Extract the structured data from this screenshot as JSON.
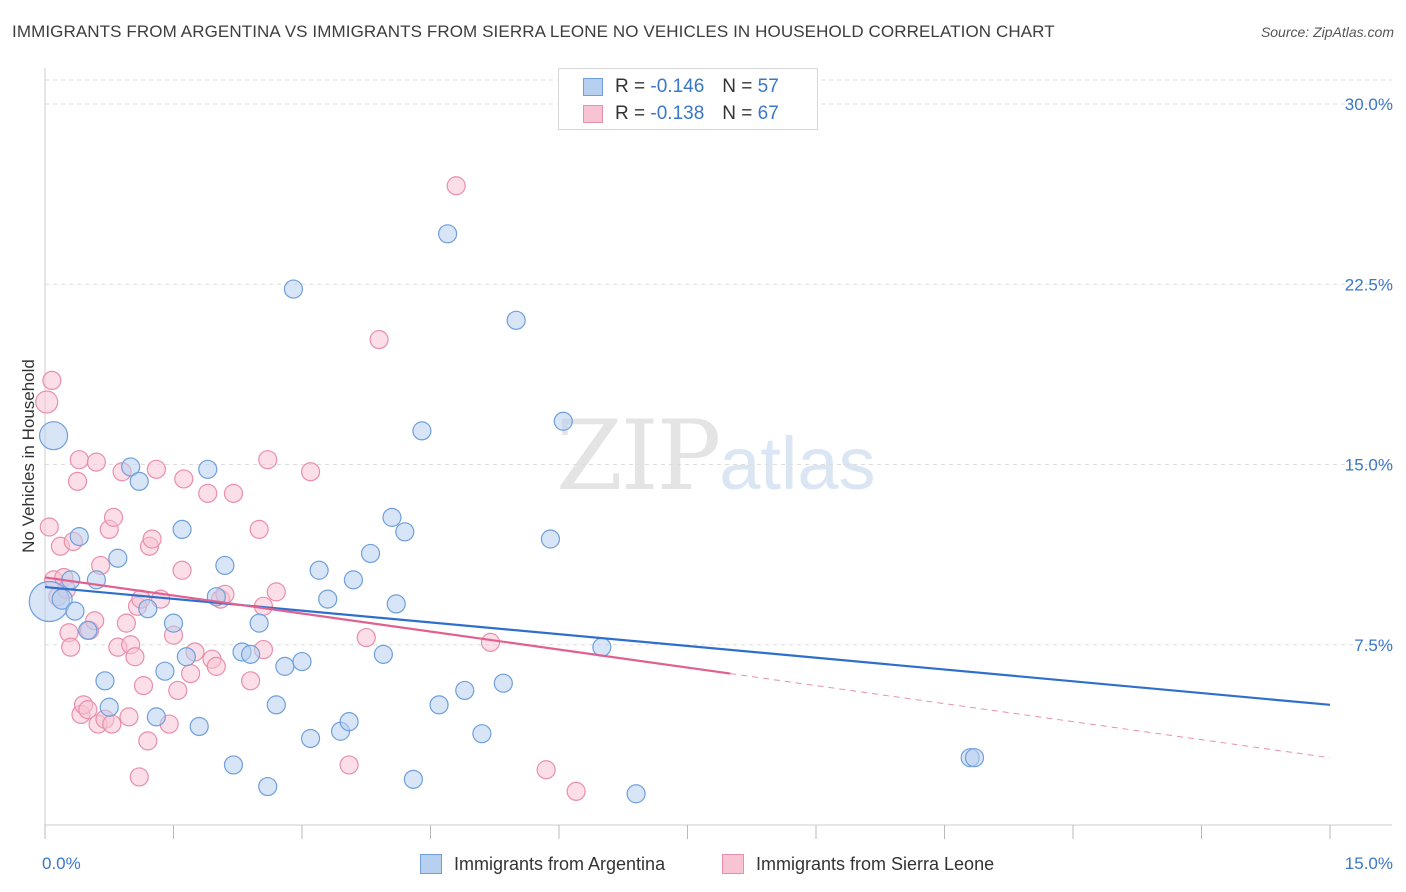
{
  "title": "IMMIGRANTS FROM ARGENTINA VS IMMIGRANTS FROM SIERRA LEONE NO VEHICLES IN HOUSEHOLD CORRELATION CHART",
  "source": "Source: ZipAtlas.com",
  "watermark": {
    "zip": "ZIP",
    "atlas": "atlas"
  },
  "legend": {
    "rows": [
      {
        "r_label": "R = ",
        "r_value": "-0.146",
        "n_label": "N = ",
        "n_value": "57"
      },
      {
        "r_label": "R = ",
        "r_value": "-0.138",
        "n_label": "N = ",
        "n_value": "67"
      }
    ]
  },
  "colors": {
    "argentina_fill": "#b7d0f0",
    "argentina_stroke": "#6f9fdc",
    "argentina_line": "#2f6fcc",
    "sierra_fill": "#f8c3d3",
    "sierra_stroke": "#e98fab",
    "sierra_line": "#e06090",
    "tick_label": "#3a77c8",
    "grid": "#dddddd"
  },
  "chart_data": {
    "type": "scatter",
    "title": "IMMIGRANTS FROM ARGENTINA VS IMMIGRANTS FROM SIERRA LEONE NO VEHICLES IN HOUSEHOLD CORRELATION CHART",
    "xlabel": "",
    "ylabel": "No Vehicles in Household",
    "xlim": [
      0,
      15
    ],
    "ylim": [
      0,
      31
    ],
    "x_tick_labels": [
      "0.0%",
      "15.0%"
    ],
    "y_ticks": [
      7.5,
      15.0,
      22.5,
      30.0
    ],
    "y_tick_labels": [
      "7.5%",
      "15.0%",
      "22.5%",
      "30.0%"
    ],
    "grid": true,
    "legend_position": "top-center",
    "series": [
      {
        "name": "Immigrants from Argentina",
        "r": -0.146,
        "n": 57,
        "trend": {
          "x": [
            0,
            15
          ],
          "y": [
            9.9,
            5.0
          ],
          "dashed_from": null
        },
        "points": [
          [
            0.05,
            9.3,
            20
          ],
          [
            0.1,
            16.2,
            14
          ],
          [
            0.2,
            9.4,
            10
          ],
          [
            0.3,
            10.2,
            9
          ],
          [
            0.35,
            8.9,
            9
          ],
          [
            0.4,
            12.0,
            9
          ],
          [
            0.5,
            8.1,
            9
          ],
          [
            0.6,
            10.2,
            9
          ],
          [
            0.7,
            6.0,
            9
          ],
          [
            0.75,
            4.9,
            9
          ],
          [
            0.85,
            11.1,
            9
          ],
          [
            1.0,
            14.9,
            9
          ],
          [
            1.1,
            14.3,
            9
          ],
          [
            1.2,
            9.0,
            9
          ],
          [
            1.3,
            4.5,
            9
          ],
          [
            1.4,
            6.4,
            9
          ],
          [
            1.5,
            8.4,
            9
          ],
          [
            1.6,
            12.3,
            9
          ],
          [
            1.65,
            7.0,
            9
          ],
          [
            1.8,
            4.1,
            9
          ],
          [
            1.9,
            14.8,
            9
          ],
          [
            2.0,
            9.5,
            9
          ],
          [
            2.1,
            10.8,
            9
          ],
          [
            2.2,
            2.5,
            9
          ],
          [
            2.3,
            7.2,
            9
          ],
          [
            2.4,
            7.1,
            9
          ],
          [
            2.5,
            8.4,
            9
          ],
          [
            2.6,
            1.6,
            9
          ],
          [
            2.7,
            5.0,
            9
          ],
          [
            2.8,
            6.6,
            9
          ],
          [
            2.9,
            22.3,
            9
          ],
          [
            3.0,
            6.8,
            9
          ],
          [
            3.1,
            3.6,
            9
          ],
          [
            3.2,
            10.6,
            9
          ],
          [
            3.3,
            9.4,
            9
          ],
          [
            3.45,
            3.9,
            9
          ],
          [
            3.55,
            4.3,
            9
          ],
          [
            3.6,
            10.2,
            9
          ],
          [
            3.8,
            11.3,
            9
          ],
          [
            3.95,
            7.1,
            9
          ],
          [
            4.05,
            12.8,
            9
          ],
          [
            4.1,
            9.2,
            9
          ],
          [
            4.2,
            12.2,
            9
          ],
          [
            4.3,
            1.9,
            9
          ],
          [
            4.4,
            16.4,
            9
          ],
          [
            4.6,
            5.0,
            9
          ],
          [
            4.7,
            24.6,
            9
          ],
          [
            4.9,
            5.6,
            9
          ],
          [
            5.1,
            3.8,
            9
          ],
          [
            5.35,
            5.9,
            9
          ],
          [
            5.5,
            21.0,
            9
          ],
          [
            5.9,
            11.9,
            9
          ],
          [
            6.05,
            16.8,
            9
          ],
          [
            6.5,
            7.4,
            9
          ],
          [
            6.9,
            1.3,
            9
          ],
          [
            10.8,
            2.8,
            9
          ],
          [
            10.85,
            2.8,
            9
          ]
        ]
      },
      {
        "name": "Immigrants from Sierra Leone",
        "r": -0.138,
        "n": 67,
        "trend": {
          "x": [
            0,
            15
          ],
          "y": [
            10.3,
            2.8
          ],
          "dashed_from": 8.0
        },
        "points": [
          [
            0.02,
            17.6,
            11
          ],
          [
            0.05,
            12.4,
            9
          ],
          [
            0.08,
            18.5,
            9
          ],
          [
            0.1,
            10.2,
            9
          ],
          [
            0.15,
            9.5,
            9
          ],
          [
            0.18,
            11.6,
            9
          ],
          [
            0.22,
            10.3,
            9
          ],
          [
            0.25,
            9.8,
            9
          ],
          [
            0.28,
            8.0,
            9
          ],
          [
            0.3,
            7.4,
            9
          ],
          [
            0.33,
            11.8,
            9
          ],
          [
            0.38,
            14.3,
            9
          ],
          [
            0.4,
            15.2,
            9
          ],
          [
            0.42,
            4.6,
            9
          ],
          [
            0.45,
            5.0,
            9
          ],
          [
            0.5,
            4.8,
            9
          ],
          [
            0.52,
            8.1,
            9
          ],
          [
            0.58,
            8.5,
            9
          ],
          [
            0.6,
            15.1,
            9
          ],
          [
            0.62,
            4.2,
            9
          ],
          [
            0.65,
            10.8,
            9
          ],
          [
            0.7,
            4.4,
            9
          ],
          [
            0.75,
            12.3,
            9
          ],
          [
            0.78,
            4.2,
            9
          ],
          [
            0.8,
            12.8,
            9
          ],
          [
            0.85,
            7.4,
            9
          ],
          [
            0.9,
            14.7,
            9
          ],
          [
            0.95,
            8.4,
            9
          ],
          [
            0.98,
            4.5,
            9
          ],
          [
            1.0,
            7.5,
            9
          ],
          [
            1.05,
            7.0,
            9
          ],
          [
            1.08,
            9.1,
            9
          ],
          [
            1.1,
            2.0,
            9
          ],
          [
            1.12,
            9.4,
            9
          ],
          [
            1.15,
            5.8,
            9
          ],
          [
            1.2,
            3.5,
            9
          ],
          [
            1.22,
            11.6,
            9
          ],
          [
            1.25,
            11.9,
            9
          ],
          [
            1.3,
            14.8,
            9
          ],
          [
            1.35,
            9.4,
            9
          ],
          [
            1.45,
            4.2,
            9
          ],
          [
            1.5,
            7.9,
            9
          ],
          [
            1.55,
            5.6,
            9
          ],
          [
            1.6,
            10.6,
            9
          ],
          [
            1.62,
            14.4,
            9
          ],
          [
            1.7,
            6.3,
            9
          ],
          [
            1.75,
            7.2,
            9
          ],
          [
            1.9,
            13.8,
            9
          ],
          [
            1.95,
            6.9,
            9
          ],
          [
            2.0,
            6.6,
            9
          ],
          [
            2.05,
            9.4,
            9
          ],
          [
            2.1,
            9.6,
            9
          ],
          [
            2.2,
            13.8,
            9
          ],
          [
            2.4,
            6.0,
            9
          ],
          [
            2.5,
            12.3,
            9
          ],
          [
            2.55,
            9.1,
            9
          ],
          [
            2.6,
            15.2,
            9
          ],
          [
            2.7,
            9.7,
            9
          ],
          [
            3.1,
            14.7,
            9
          ],
          [
            3.55,
            2.5,
            9
          ],
          [
            3.75,
            7.8,
            9
          ],
          [
            3.9,
            20.2,
            9
          ],
          [
            4.8,
            26.6,
            9
          ],
          [
            5.2,
            7.6,
            9
          ],
          [
            5.85,
            2.3,
            9
          ],
          [
            6.2,
            1.4,
            9
          ],
          [
            2.55,
            7.3,
            9
          ]
        ]
      }
    ]
  },
  "bottom_legend": [
    {
      "label": "Immigrants from Argentina"
    },
    {
      "label": "Immigrants from Sierra Leone"
    }
  ]
}
